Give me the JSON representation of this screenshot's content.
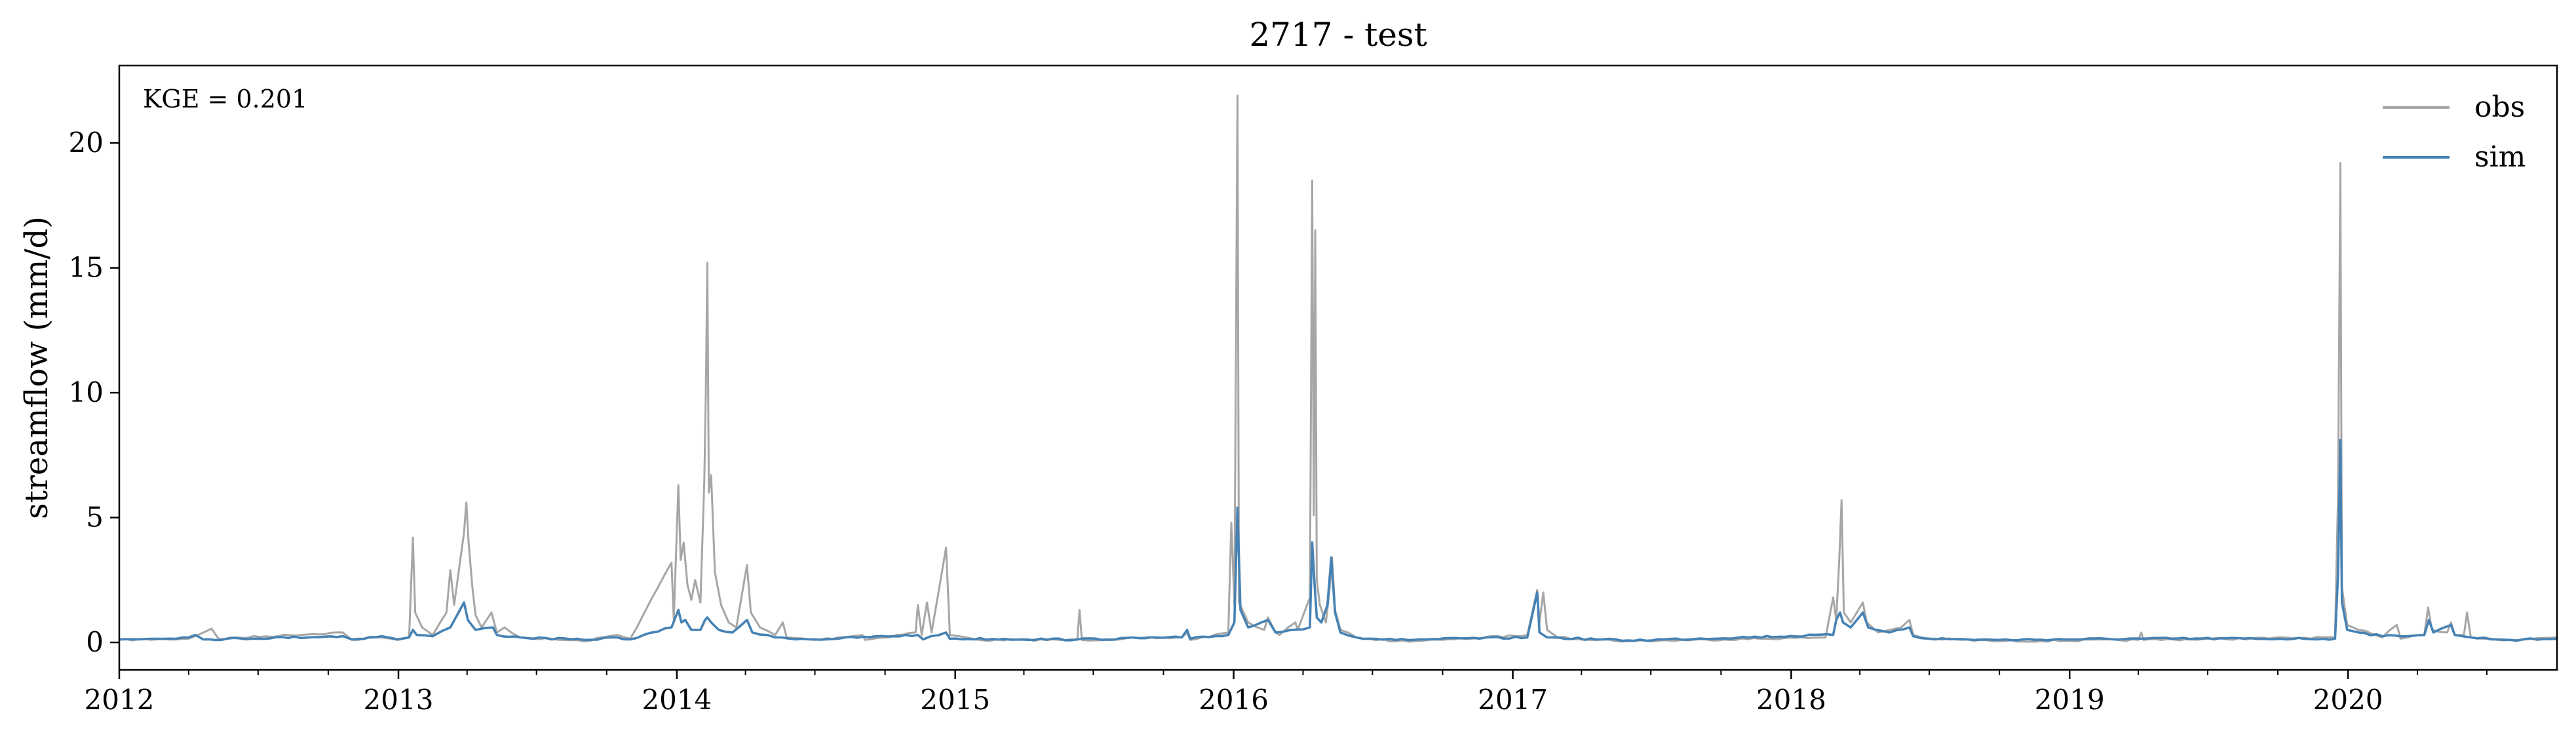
{
  "chart_data": {
    "type": "line",
    "title": "2717 - test",
    "xlabel": "",
    "ylabel": "streamflow (mm/d)",
    "annotation": "KGE = 0.201",
    "x_domain": [
      "2012-01-01",
      "2020-10-01"
    ],
    "x_ticks": [
      "2012",
      "2013",
      "2014",
      "2015",
      "2016",
      "2017",
      "2018",
      "2019",
      "2020"
    ],
    "y_ticks": [
      0,
      5,
      10,
      15,
      20
    ],
    "ylim": [
      -1.1,
      23.1
    ],
    "grid": false,
    "legend": {
      "position": "top-right",
      "entries": [
        "obs",
        "sim"
      ]
    },
    "series": [
      {
        "name": "obs",
        "color": "#a6a6a6",
        "baseline": 0.1,
        "points": [
          [
            "2012-01-01",
            0.1
          ],
          [
            "2012-04-01",
            0.15
          ],
          [
            "2012-05-01",
            0.55
          ],
          [
            "2012-05-10",
            0.15
          ],
          [
            "2012-10-20",
            0.4
          ],
          [
            "2012-11-01",
            0.1
          ],
          [
            "2012-12-10",
            0.2
          ],
          [
            "2012-12-31",
            0.1
          ],
          [
            "2013-01-15",
            0.2
          ],
          [
            "2013-01-20",
            4.2
          ],
          [
            "2013-01-23",
            1.2
          ],
          [
            "2013-02-01",
            0.6
          ],
          [
            "2013-02-15",
            0.3
          ],
          [
            "2013-03-05",
            1.2
          ],
          [
            "2013-03-10",
            2.9
          ],
          [
            "2013-03-15",
            1.5
          ],
          [
            "2013-03-28",
            4.4
          ],
          [
            "2013-03-31",
            5.6
          ],
          [
            "2013-04-03",
            4.0
          ],
          [
            "2013-04-08",
            2.2
          ],
          [
            "2013-04-12",
            1.1
          ],
          [
            "2013-04-20",
            0.6
          ],
          [
            "2013-05-03",
            1.2
          ],
          [
            "2013-05-10",
            0.4
          ],
          [
            "2013-05-20",
            0.6
          ],
          [
            "2013-06-10",
            0.2
          ],
          [
            "2013-09-01",
            0.05
          ],
          [
            "2013-10-15",
            0.3
          ],
          [
            "2013-11-01",
            0.15
          ],
          [
            "2013-12-25",
            3.2
          ],
          [
            "2013-12-28",
            0.9
          ],
          [
            "2014-01-03",
            6.3
          ],
          [
            "2014-01-06",
            3.3
          ],
          [
            "2014-01-10",
            4.0
          ],
          [
            "2014-01-15",
            2.3
          ],
          [
            "2014-01-20",
            1.7
          ],
          [
            "2014-01-25",
            2.5
          ],
          [
            "2014-02-01",
            1.6
          ],
          [
            "2014-02-06",
            6.5
          ],
          [
            "2014-02-08",
            10.0
          ],
          [
            "2014-02-10",
            15.2
          ],
          [
            "2014-02-12",
            6.0
          ],
          [
            "2014-02-15",
            6.7
          ],
          [
            "2014-02-20",
            2.8
          ],
          [
            "2014-02-28",
            1.5
          ],
          [
            "2014-03-10",
            0.8
          ],
          [
            "2014-03-20",
            0.6
          ],
          [
            "2014-04-03",
            3.1
          ],
          [
            "2014-04-08",
            1.2
          ],
          [
            "2014-04-20",
            0.6
          ],
          [
            "2014-05-10",
            0.3
          ],
          [
            "2014-05-20",
            0.8
          ],
          [
            "2014-05-25",
            0.2
          ],
          [
            "2014-07-01",
            0.1
          ],
          [
            "2014-09-01",
            0.3
          ],
          [
            "2014-09-05",
            0.1
          ],
          [
            "2014-11-10",
            0.4
          ],
          [
            "2014-11-13",
            1.5
          ],
          [
            "2014-11-18",
            0.3
          ],
          [
            "2014-11-25",
            1.6
          ],
          [
            "2014-12-01",
            0.4
          ],
          [
            "2014-12-20",
            3.8
          ],
          [
            "2014-12-25",
            0.3
          ],
          [
            "2015-02-01",
            0.1
          ],
          [
            "2015-06-10",
            0.1
          ],
          [
            "2015-06-13",
            1.3
          ],
          [
            "2015-06-16",
            0.1
          ],
          [
            "2015-10-25",
            0.2
          ],
          [
            "2015-11-01",
            0.4
          ],
          [
            "2015-11-05",
            0.1
          ],
          [
            "2015-12-25",
            0.4
          ],
          [
            "2015-12-29",
            4.8
          ],
          [
            "2016-01-02",
            1.5
          ],
          [
            "2016-01-06",
            21.9
          ],
          [
            "2016-01-08",
            1.6
          ],
          [
            "2016-01-20",
            0.8
          ],
          [
            "2016-02-10",
            0.5
          ],
          [
            "2016-02-15",
            1.0
          ],
          [
            "2016-02-25",
            0.4
          ],
          [
            "2016-03-01",
            0.3
          ],
          [
            "2016-03-22",
            0.8
          ],
          [
            "2016-03-25",
            0.5
          ],
          [
            "2016-04-10",
            1.8
          ],
          [
            "2016-04-13",
            18.5
          ],
          [
            "2016-04-15",
            5.1
          ],
          [
            "2016-04-17",
            16.5
          ],
          [
            "2016-04-19",
            2.5
          ],
          [
            "2016-04-23",
            1.5
          ],
          [
            "2016-05-01",
            0.8
          ],
          [
            "2016-05-06",
            2.2
          ],
          [
            "2016-05-09",
            3.4
          ],
          [
            "2016-05-13",
            1.3
          ],
          [
            "2016-05-20",
            0.5
          ],
          [
            "2016-06-10",
            0.2
          ],
          [
            "2016-08-01",
            0.05
          ],
          [
            "2016-10-01",
            0.1
          ],
          [
            "2017-01-20",
            0.3
          ],
          [
            "2017-02-02",
            2.1
          ],
          [
            "2017-02-05",
            0.8
          ],
          [
            "2017-02-10",
            2.0
          ],
          [
            "2017-02-15",
            0.5
          ],
          [
            "2017-03-01",
            0.2
          ],
          [
            "2017-06-01",
            0.05
          ],
          [
            "2018-02-15",
            0.2
          ],
          [
            "2018-02-25",
            1.8
          ],
          [
            "2018-03-01",
            0.9
          ],
          [
            "2018-03-05",
            3.3
          ],
          [
            "2018-03-08",
            5.7
          ],
          [
            "2018-03-11",
            1.2
          ],
          [
            "2018-03-20",
            0.8
          ],
          [
            "2018-04-05",
            1.6
          ],
          [
            "2018-04-10",
            0.8
          ],
          [
            "2018-04-25",
            0.4
          ],
          [
            "2018-05-10",
            0.5
          ],
          [
            "2018-05-25",
            0.6
          ],
          [
            "2018-06-05",
            0.9
          ],
          [
            "2018-06-10",
            0.3
          ],
          [
            "2018-07-01",
            0.15
          ],
          [
            "2018-10-01",
            0.05
          ],
          [
            "2019-04-01",
            0.1
          ],
          [
            "2019-04-05",
            0.4
          ],
          [
            "2019-04-08",
            0.1
          ],
          [
            "2019-12-15",
            0.2
          ],
          [
            "2019-12-19",
            6.0
          ],
          [
            "2019-12-22",
            19.2
          ],
          [
            "2019-12-24",
            2.2
          ],
          [
            "2019-12-31",
            0.7
          ],
          [
            "2020-01-15",
            0.5
          ],
          [
            "2020-02-01",
            0.35
          ],
          [
            "2020-02-15",
            0.2
          ],
          [
            "2020-03-05",
            0.7
          ],
          [
            "2020-03-10",
            0.15
          ],
          [
            "2020-04-10",
            0.3
          ],
          [
            "2020-04-15",
            1.4
          ],
          [
            "2020-04-20",
            0.5
          ],
          [
            "2020-05-10",
            0.4
          ],
          [
            "2020-05-15",
            0.8
          ],
          [
            "2020-05-20",
            0.3
          ],
          [
            "2020-06-01",
            0.3
          ],
          [
            "2020-06-05",
            1.2
          ],
          [
            "2020-06-10",
            0.2
          ],
          [
            "2020-08-01",
            0.1
          ],
          [
            "2020-10-01",
            0.2
          ]
        ]
      },
      {
        "name": "sim",
        "color": "#4682b4",
        "baseline": 0.1,
        "points": [
          [
            "2012-01-01",
            0.12
          ],
          [
            "2012-04-01",
            0.2
          ],
          [
            "2012-04-10",
            0.3
          ],
          [
            "2012-04-20",
            0.12
          ],
          [
            "2012-10-20",
            0.25
          ],
          [
            "2012-11-01",
            0.12
          ],
          [
            "2012-12-10",
            0.25
          ],
          [
            "2012-12-31",
            0.12
          ],
          [
            "2013-01-15",
            0.2
          ],
          [
            "2013-01-20",
            0.5
          ],
          [
            "2013-01-25",
            0.3
          ],
          [
            "2013-02-15",
            0.25
          ],
          [
            "2013-03-10",
            0.6
          ],
          [
            "2013-03-28",
            1.6
          ],
          [
            "2013-04-02",
            0.9
          ],
          [
            "2013-04-12",
            0.5
          ],
          [
            "2013-05-05",
            0.6
          ],
          [
            "2013-05-10",
            0.3
          ],
          [
            "2013-06-10",
            0.2
          ],
          [
            "2013-09-01",
            0.1
          ],
          [
            "2013-10-15",
            0.2
          ],
          [
            "2013-11-01",
            0.12
          ],
          [
            "2013-12-25",
            0.6
          ],
          [
            "2014-01-03",
            1.3
          ],
          [
            "2014-01-07",
            0.8
          ],
          [
            "2014-01-12",
            0.9
          ],
          [
            "2014-01-20",
            0.5
          ],
          [
            "2014-02-01",
            0.5
          ],
          [
            "2014-02-07",
            0.9
          ],
          [
            "2014-02-10",
            1.0
          ],
          [
            "2014-02-15",
            0.8
          ],
          [
            "2014-02-25",
            0.5
          ],
          [
            "2014-03-15",
            0.4
          ],
          [
            "2014-04-03",
            0.9
          ],
          [
            "2014-04-10",
            0.4
          ],
          [
            "2014-05-10",
            0.2
          ],
          [
            "2014-07-01",
            0.12
          ],
          [
            "2014-11-13",
            0.3
          ],
          [
            "2014-11-20",
            0.12
          ],
          [
            "2014-12-20",
            0.4
          ],
          [
            "2014-12-25",
            0.15
          ],
          [
            "2015-06-10",
            0.12
          ],
          [
            "2015-10-25",
            0.2
          ],
          [
            "2015-11-01",
            0.5
          ],
          [
            "2015-11-05",
            0.15
          ],
          [
            "2015-12-25",
            0.3
          ],
          [
            "2016-01-02",
            0.8
          ],
          [
            "2016-01-06",
            5.4
          ],
          [
            "2016-01-10",
            1.3
          ],
          [
            "2016-01-20",
            0.6
          ],
          [
            "2016-02-15",
            0.9
          ],
          [
            "2016-02-25",
            0.4
          ],
          [
            "2016-04-10",
            0.6
          ],
          [
            "2016-04-13",
            4.0
          ],
          [
            "2016-04-16",
            2.4
          ],
          [
            "2016-04-19",
            1.0
          ],
          [
            "2016-04-25",
            0.8
          ],
          [
            "2016-05-03",
            1.5
          ],
          [
            "2016-05-08",
            3.4
          ],
          [
            "2016-05-13",
            1.2
          ],
          [
            "2016-05-20",
            0.4
          ],
          [
            "2016-06-10",
            0.2
          ],
          [
            "2016-08-01",
            0.1
          ],
          [
            "2017-01-20",
            0.2
          ],
          [
            "2017-02-02",
            2.0
          ],
          [
            "2017-02-05",
            0.4
          ],
          [
            "2017-02-15",
            0.2
          ],
          [
            "2017-06-01",
            0.08
          ],
          [
            "2018-02-25",
            0.3
          ],
          [
            "2018-03-01",
            0.9
          ],
          [
            "2018-03-06",
            1.2
          ],
          [
            "2018-03-10",
            0.8
          ],
          [
            "2018-03-20",
            0.6
          ],
          [
            "2018-04-05",
            1.2
          ],
          [
            "2018-04-12",
            0.6
          ],
          [
            "2018-05-10",
            0.4
          ],
          [
            "2018-05-20",
            0.5
          ],
          [
            "2018-06-05",
            0.6
          ],
          [
            "2018-06-10",
            0.25
          ],
          [
            "2018-07-01",
            0.15
          ],
          [
            "2018-10-01",
            0.1
          ],
          [
            "2019-04-05",
            0.15
          ],
          [
            "2019-12-15",
            0.15
          ],
          [
            "2019-12-19",
            2.7
          ],
          [
            "2019-12-22",
            8.1
          ],
          [
            "2019-12-24",
            1.6
          ],
          [
            "2019-12-31",
            0.5
          ],
          [
            "2020-01-15",
            0.4
          ],
          [
            "2020-02-15",
            0.25
          ],
          [
            "2020-04-10",
            0.3
          ],
          [
            "2020-04-16",
            0.9
          ],
          [
            "2020-04-22",
            0.4
          ],
          [
            "2020-05-15",
            0.7
          ],
          [
            "2020-05-20",
            0.3
          ],
          [
            "2020-06-10",
            0.2
          ],
          [
            "2020-08-01",
            0.1
          ],
          [
            "2020-10-01",
            0.15
          ]
        ]
      }
    ]
  }
}
